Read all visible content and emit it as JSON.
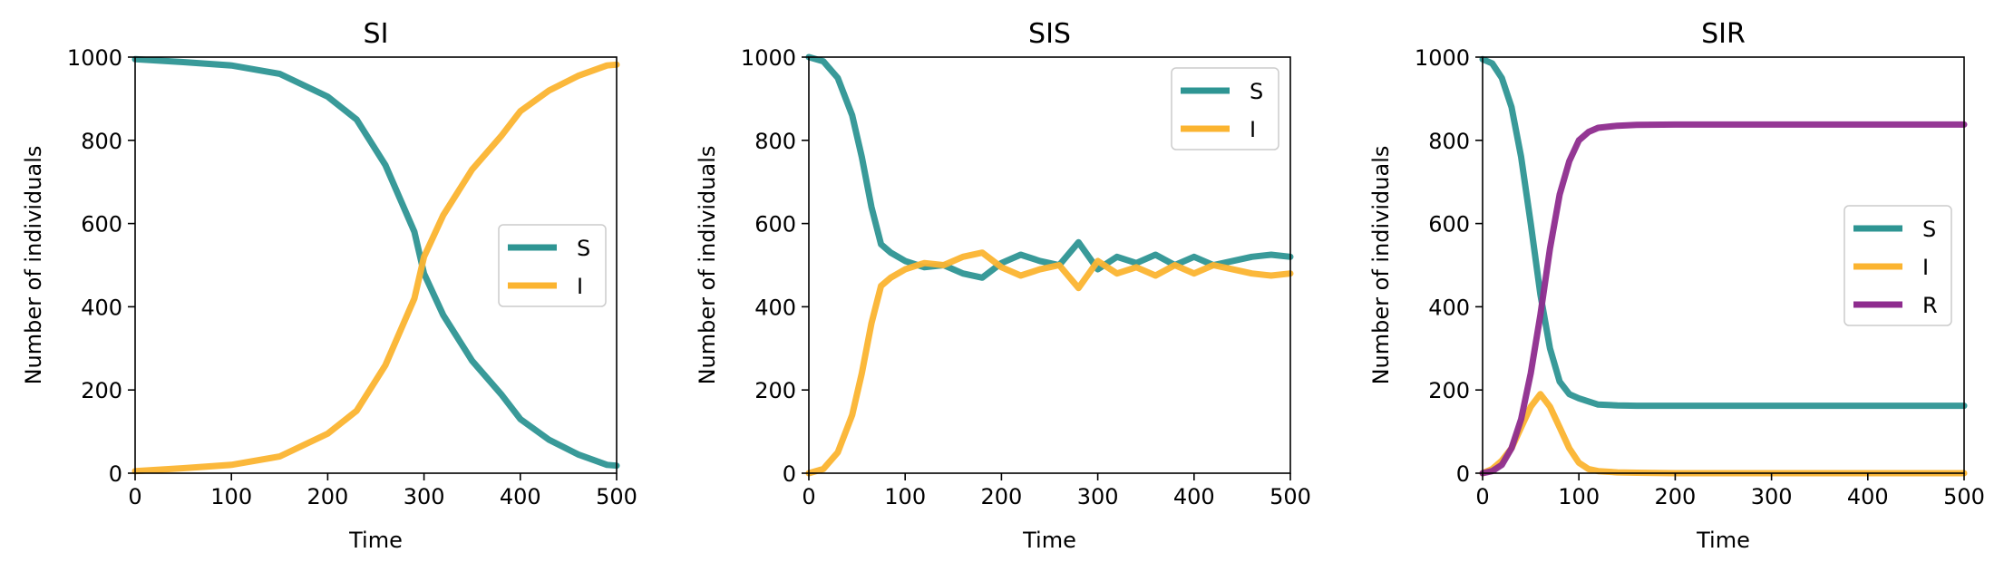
{
  "chart_data": [
    {
      "type": "line",
      "title": "SI",
      "xlabel": "Time",
      "ylabel": "Number of individuals",
      "xlim": [
        0,
        500
      ],
      "ylim": [
        0,
        1000
      ],
      "xticks": [
        "0",
        "100",
        "200",
        "300",
        "400",
        "500"
      ],
      "yticks": [
        "0",
        "200",
        "400",
        "600",
        "800",
        "1000"
      ],
      "legend": "center-right",
      "series": [
        {
          "name": "S",
          "color": "#2e9593",
          "x": [
            0,
            50,
            100,
            150,
            200,
            230,
            260,
            290,
            300,
            320,
            350,
            380,
            400,
            430,
            460,
            490,
            500
          ],
          "y": [
            995,
            988,
            980,
            960,
            905,
            850,
            740,
            580,
            480,
            380,
            270,
            190,
            130,
            80,
            45,
            20,
            18
          ]
        },
        {
          "name": "I",
          "color": "#fbb430",
          "x": [
            0,
            50,
            100,
            150,
            200,
            230,
            260,
            290,
            300,
            320,
            350,
            380,
            400,
            430,
            460,
            490,
            500
          ],
          "y": [
            5,
            12,
            20,
            40,
            95,
            150,
            260,
            420,
            520,
            620,
            730,
            810,
            870,
            920,
            955,
            980,
            982
          ]
        }
      ]
    },
    {
      "type": "line",
      "title": "SIS",
      "xlabel": "Time",
      "ylabel": "Number of individuals",
      "xlim": [
        0,
        500
      ],
      "ylim": [
        0,
        1000
      ],
      "xticks": [
        "0",
        "100",
        "200",
        "300",
        "400",
        "500"
      ],
      "yticks": [
        "0",
        "200",
        "400",
        "600",
        "800",
        "1000"
      ],
      "legend": "upper-right",
      "series": [
        {
          "name": "S",
          "color": "#2e9593",
          "x": [
            0,
            15,
            30,
            45,
            55,
            65,
            75,
            85,
            100,
            120,
            140,
            160,
            180,
            200,
            220,
            240,
            260,
            280,
            300,
            320,
            340,
            360,
            380,
            400,
            420,
            440,
            460,
            480,
            500
          ],
          "y": [
            1000,
            990,
            950,
            860,
            760,
            640,
            550,
            530,
            510,
            495,
            500,
            480,
            470,
            505,
            525,
            510,
            500,
            555,
            490,
            520,
            505,
            525,
            500,
            520,
            500,
            510,
            520,
            525,
            520
          ]
        },
        {
          "name": "I",
          "color": "#fbb430",
          "x": [
            0,
            15,
            30,
            45,
            55,
            65,
            75,
            85,
            100,
            120,
            140,
            160,
            180,
            200,
            220,
            240,
            260,
            280,
            300,
            320,
            340,
            360,
            380,
            400,
            420,
            440,
            460,
            480,
            500
          ],
          "y": [
            0,
            10,
            50,
            140,
            240,
            360,
            450,
            470,
            490,
            505,
            500,
            520,
            530,
            495,
            475,
            490,
            500,
            445,
            510,
            480,
            495,
            475,
            500,
            480,
            500,
            490,
            480,
            475,
            480
          ]
        }
      ]
    },
    {
      "type": "line",
      "title": "SIR",
      "xlabel": "Time",
      "ylabel": "Number of individuals",
      "xlim": [
        0,
        500
      ],
      "ylim": [
        0,
        1000
      ],
      "xticks": [
        "0",
        "100",
        "200",
        "300",
        "400",
        "500"
      ],
      "yticks": [
        "0",
        "200",
        "400",
        "600",
        "800",
        "1000"
      ],
      "legend": "center-right",
      "series": [
        {
          "name": "S",
          "color": "#2e9593",
          "x": [
            0,
            10,
            20,
            30,
            40,
            50,
            60,
            70,
            80,
            90,
            100,
            120,
            140,
            160,
            200,
            300,
            400,
            500
          ],
          "y": [
            995,
            985,
            950,
            880,
            760,
            600,
            430,
            300,
            220,
            190,
            180,
            165,
            163,
            162,
            162,
            162,
            162,
            162
          ]
        },
        {
          "name": "I",
          "color": "#fbb430",
          "x": [
            0,
            10,
            20,
            30,
            40,
            50,
            60,
            70,
            80,
            90,
            100,
            110,
            120,
            140,
            160,
            200,
            300,
            400,
            500
          ],
          "y": [
            0,
            10,
            30,
            60,
            110,
            160,
            190,
            160,
            110,
            60,
            25,
            10,
            5,
            2,
            1,
            0,
            0,
            0,
            0
          ]
        },
        {
          "name": "R",
          "color": "#8e2c8e",
          "x": [
            0,
            10,
            20,
            30,
            40,
            50,
            60,
            70,
            80,
            90,
            100,
            110,
            120,
            140,
            160,
            200,
            300,
            400,
            500
          ],
          "y": [
            0,
            5,
            20,
            60,
            130,
            240,
            380,
            540,
            670,
            750,
            800,
            820,
            830,
            835,
            837,
            838,
            838,
            838,
            838
          ]
        }
      ]
    }
  ]
}
